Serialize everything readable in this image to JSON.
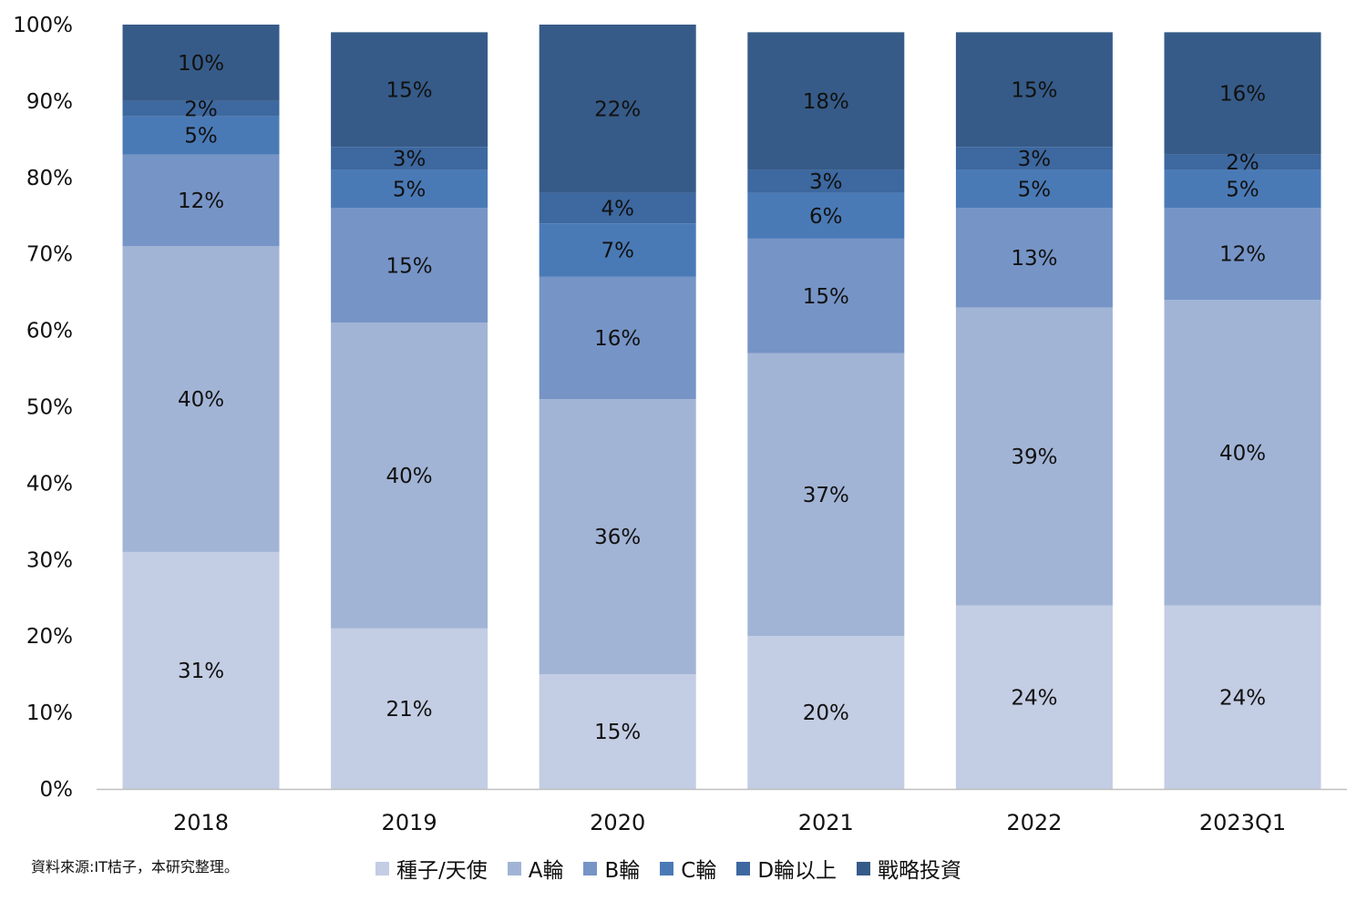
{
  "chart_data": {
    "type": "bar",
    "stacked": true,
    "categories": [
      "2018",
      "2019",
      "2020",
      "2021",
      "2022",
      "2023Q1"
    ],
    "series": [
      {
        "name": "種子/天使",
        "color": "#c3cde3",
        "values": [
          31,
          21,
          15,
          20,
          24,
          24
        ]
      },
      {
        "name": "A輪",
        "color": "#a2b4d5",
        "values": [
          40,
          40,
          36,
          37,
          39,
          40
        ]
      },
      {
        "name": "B輪",
        "color": "#7694c6",
        "values": [
          12,
          15,
          16,
          15,
          13,
          12
        ]
      },
      {
        "name": "C輪",
        "color": "#4a7ab6",
        "values": [
          5,
          5,
          7,
          6,
          5,
          5
        ]
      },
      {
        "name": "D輪以上",
        "color": "#3d68a0",
        "values": [
          2,
          3,
          4,
          3,
          3,
          2
        ]
      },
      {
        "name": "戰略投資",
        "color": "#365b88",
        "values": [
          10,
          15,
          22,
          18,
          15,
          16
        ]
      }
    ],
    "ylim": [
      0,
      100
    ],
    "yticks": [
      "0%",
      "10%",
      "20%",
      "30%",
      "40%",
      "50%",
      "60%",
      "70%",
      "80%",
      "90%",
      "100%"
    ],
    "value_suffix": "%",
    "grid": false,
    "legend_position": "bottom"
  },
  "source_note": "資料來源:IT桔子，本研究整理。"
}
